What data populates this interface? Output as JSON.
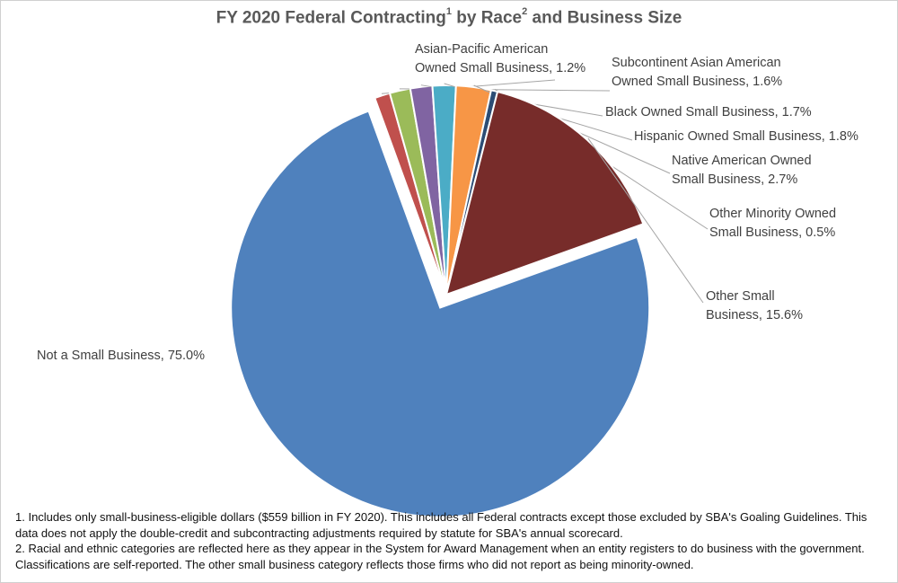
{
  "chart_data": {
    "type": "pie",
    "title": "FY 2020 Federal Contracting",
    "title_footnote_1": "1",
    "title_middle": " by Race",
    "title_footnote_2": "2",
    "title_end": " and Business Size",
    "slices": [
      {
        "label": "Not a Small Business, 75.0%",
        "value": 75.0,
        "color": "#4f81bd",
        "exploded": true
      },
      {
        "label": "Asian-Pacific American\nOwned Small Business, 1.2%",
        "value": 1.2,
        "color": "#c0504d",
        "exploded": false
      },
      {
        "label": "Subcontinent Asian American\nOwned Small Business, 1.6%",
        "value": 1.6,
        "color": "#9bbb59",
        "exploded": false
      },
      {
        "label": "Black Owned Small Business, 1.7%",
        "value": 1.7,
        "color": "#8064a2",
        "exploded": false
      },
      {
        "label": "Hispanic Owned Small Business, 1.8%",
        "value": 1.8,
        "color": "#4bacc6",
        "exploded": false
      },
      {
        "label": "Native American Owned\nSmall Business, 2.7%",
        "value": 2.7,
        "color": "#f79646",
        "exploded": false
      },
      {
        "label": "Other Minority Owned\nSmall Business, 0.5%",
        "value": 0.5,
        "color": "#2c4d75",
        "exploded": false
      },
      {
        "label": "Other Small\nBusiness, 15.6%",
        "value": 15.6,
        "color": "#772c2a",
        "exploded": false
      }
    ]
  },
  "footnotes": [
    "1. Includes only small-business-eligible dollars ($559 billion in FY 2020). This includes all Federal contracts except those excluded by SBA's Goaling Guidelines. This data does not apply the double-credit and subcontracting adjustments required by statute for SBA's annual scorecard.",
    "2. Racial and ethnic categories are reflected here as they appear in the System for Award Management when an entity registers to do business with the government. Classifications are self-reported. The other small business category reflects those firms who did not report as being minority-owned."
  ]
}
